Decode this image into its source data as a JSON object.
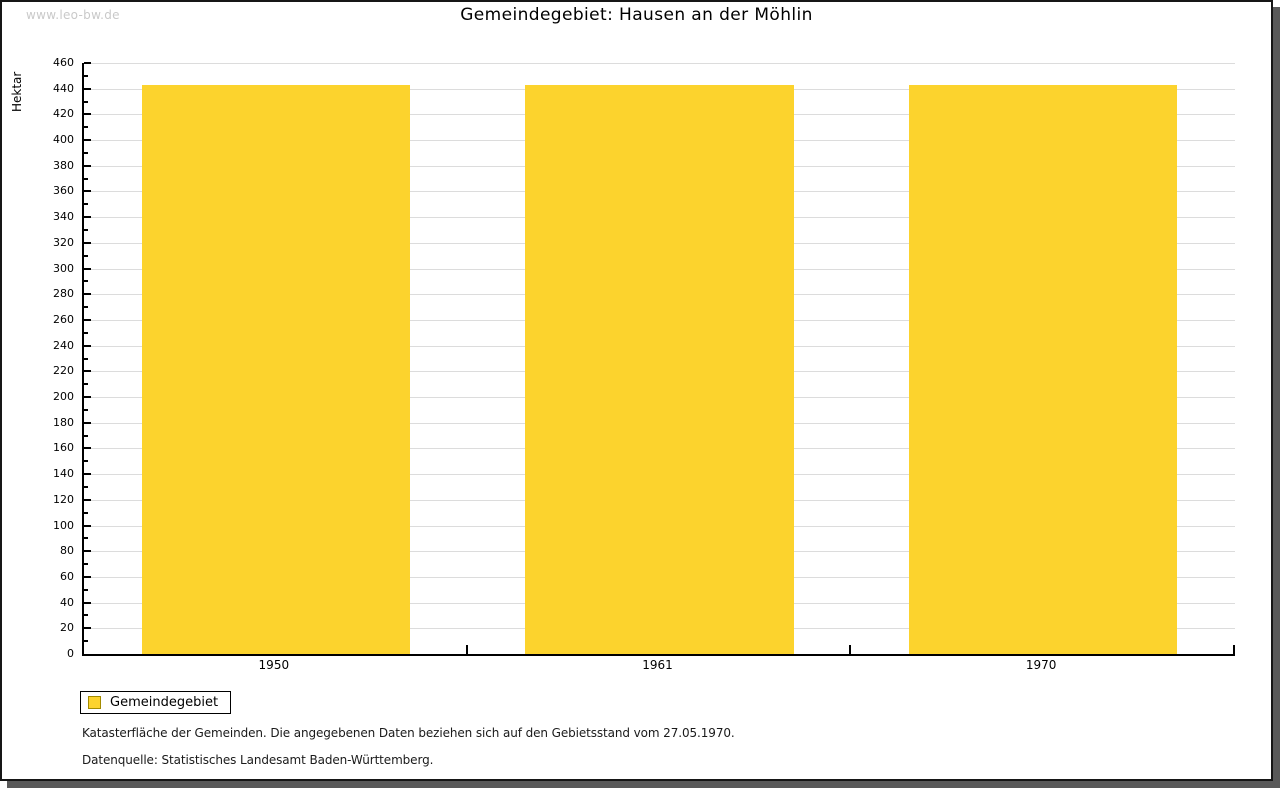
{
  "watermark": "www.leo-bw.de",
  "header": {
    "title": "Gemeindegebiet: Hausen an der Möhlin"
  },
  "chart_data": {
    "type": "bar",
    "title": "Gemeindegebiet: Hausen an der Möhlin",
    "xlabel": "",
    "ylabel": "Hektar",
    "categories": [
      "1950",
      "1961",
      "1970"
    ],
    "series": [
      {
        "name": "Gemeindegebiet",
        "values": [
          443,
          443,
          443
        ]
      }
    ],
    "ylim": [
      0,
      460
    ],
    "ytick_major_step": 20,
    "ytick_minor_step": 10,
    "grid": true,
    "legend_position": "bottom-left",
    "bar_color": "#FCD32D",
    "bar_width_fraction": 0.7
  },
  "legend": {
    "items": [
      {
        "label": "Gemeindegebiet",
        "color": "#FCD32D",
        "swatch_border": "#A38B00"
      }
    ]
  },
  "footnotes": [
    "Katasterfläche der Gemeinden. Die angegebenen Daten beziehen sich auf den Gebietsstand vom 27.05.1970.",
    "Datenquelle: Statistisches Landesamt Baden-Württemberg."
  ],
  "colors": {
    "bar": "#FCD32D",
    "grid": "#DCDCDC",
    "axis": "#000000",
    "watermark": "#C9C9C9",
    "frame_shadow": "#595959"
  }
}
